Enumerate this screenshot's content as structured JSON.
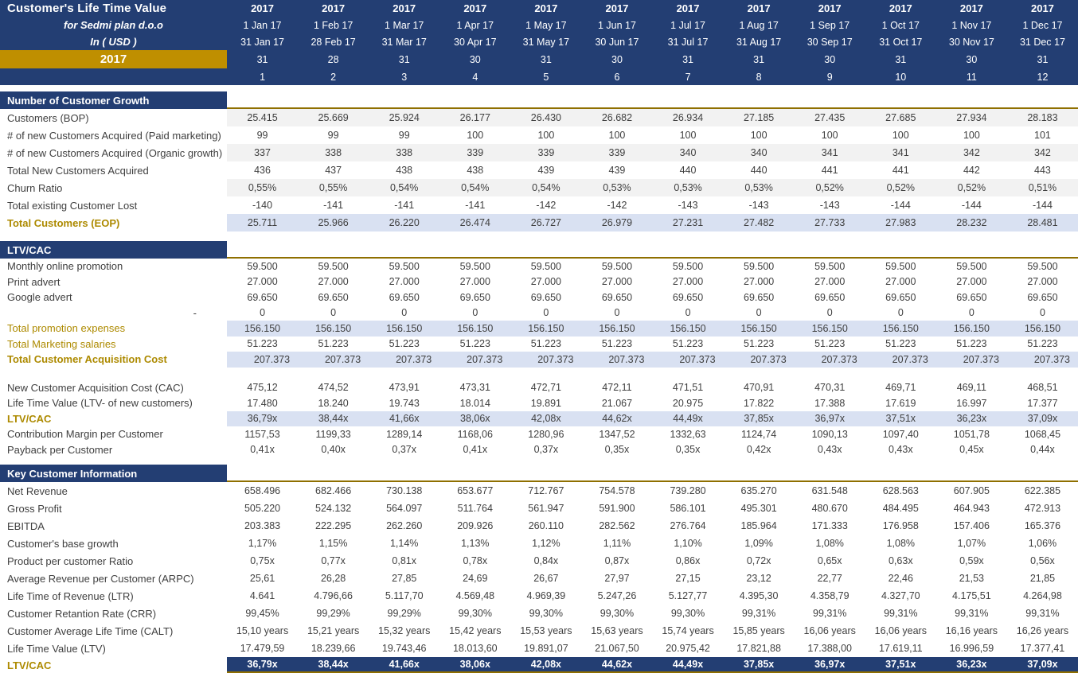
{
  "title": "Customer's Life Time Value",
  "subtitle": "for Sedmi plan d.o.o",
  "currency_line": "In ( USD )",
  "year_band_label": "2017",
  "colors": {
    "navy": "#233E73",
    "gold_band": "#BF8F00",
    "gold_text": "#AD8A00",
    "gold_line": "#8F6F00",
    "highlight_blue": "#D9E1F2",
    "stripe_gray": "#F2F2F2"
  },
  "columns": [
    {
      "year": "2017",
      "start": "1 Jan 17",
      "end": "31 Jan 17",
      "days": "31",
      "num": "1"
    },
    {
      "year": "2017",
      "start": "1 Feb 17",
      "end": "28 Feb 17",
      "days": "28",
      "num": "2"
    },
    {
      "year": "2017",
      "start": "1 Mar 17",
      "end": "31 Mar 17",
      "days": "31",
      "num": "3"
    },
    {
      "year": "2017",
      "start": "1 Apr 17",
      "end": "30 Apr 17",
      "days": "30",
      "num": "4"
    },
    {
      "year": "2017",
      "start": "1 May 17",
      "end": "31 May 17",
      "days": "31",
      "num": "5"
    },
    {
      "year": "2017",
      "start": "1 Jun 17",
      "end": "30 Jun 17",
      "days": "30",
      "num": "6"
    },
    {
      "year": "2017",
      "start": "1 Jul 17",
      "end": "31 Jul 17",
      "days": "31",
      "num": "7"
    },
    {
      "year": "2017",
      "start": "1 Aug 17",
      "end": "31 Aug 17",
      "days": "31",
      "num": "8"
    },
    {
      "year": "2017",
      "start": "1 Sep 17",
      "end": "30 Sep 17",
      "days": "30",
      "num": "9"
    },
    {
      "year": "2017",
      "start": "1 Oct 17",
      "end": "31 Oct 17",
      "days": "31",
      "num": "10"
    },
    {
      "year": "2017",
      "start": "1 Nov 17",
      "end": "30 Nov 17",
      "days": "30",
      "num": "11"
    },
    {
      "year": "2017",
      "start": "1 Dec 17",
      "end": "31 Dec 17",
      "days": "31",
      "num": "12"
    }
  ],
  "sections": [
    {
      "title": "Number of Customer Growth",
      "row_class": "r-s1",
      "rows": [
        {
          "label": "Customers (BOP)",
          "bg": "stripe",
          "values": [
            "25.415",
            "25.669",
            "25.924",
            "26.177",
            "26.430",
            "26.682",
            "26.934",
            "27.185",
            "27.435",
            "27.685",
            "27.934",
            "28.183"
          ]
        },
        {
          "label": "# of new Customers Acquired (Paid marketing)",
          "values": [
            "99",
            "99",
            "99",
            "100",
            "100",
            "100",
            "100",
            "100",
            "100",
            "100",
            "100",
            "101"
          ]
        },
        {
          "label": "# of new Customers Acquired (Organic growth)",
          "bg": "stripe",
          "values": [
            "337",
            "338",
            "338",
            "339",
            "339",
            "339",
            "340",
            "340",
            "341",
            "341",
            "342",
            "342"
          ]
        },
        {
          "label": "Total New Customers Acquired",
          "values": [
            "436",
            "437",
            "438",
            "438",
            "439",
            "439",
            "440",
            "440",
            "441",
            "441",
            "442",
            "443"
          ]
        },
        {
          "label": "Churn Ratio",
          "bg": "stripe",
          "values": [
            "0,55%",
            "0,55%",
            "0,54%",
            "0,54%",
            "0,54%",
            "0,53%",
            "0,53%",
            "0,53%",
            "0,52%",
            "0,52%",
            "0,52%",
            "0,51%"
          ]
        },
        {
          "label": "Total existing Customer Lost",
          "values": [
            "-140",
            "-141",
            "-141",
            "-141",
            "-142",
            "-142",
            "-143",
            "-143",
            "-143",
            "-144",
            "-144",
            "-144"
          ]
        },
        {
          "label": "Total Customers (EOP)",
          "bg": "blue",
          "label_class": "goldb",
          "values": [
            "25.711",
            "25.966",
            "26.220",
            "26.474",
            "26.727",
            "26.979",
            "27.231",
            "27.482",
            "27.733",
            "27.983",
            "28.232",
            "28.481"
          ]
        }
      ]
    },
    {
      "title": "LTV/CAC",
      "row_class": "r-s2",
      "rows": [
        {
          "label": "Monthly online promotion",
          "values": [
            "59.500",
            "59.500",
            "59.500",
            "59.500",
            "59.500",
            "59.500",
            "59.500",
            "59.500",
            "59.500",
            "59.500",
            "59.500",
            "59.500"
          ]
        },
        {
          "label": "Print advert",
          "values": [
            "27.000",
            "27.000",
            "27.000",
            "27.000",
            "27.000",
            "27.000",
            "27.000",
            "27.000",
            "27.000",
            "27.000",
            "27.000",
            "27.000"
          ]
        },
        {
          "label": "Google advert",
          "values": [
            "69.650",
            "69.650",
            "69.650",
            "69.650",
            "69.650",
            "69.650",
            "69.650",
            "69.650",
            "69.650",
            "69.650",
            "69.650",
            "69.650"
          ]
        },
        {
          "label": "-",
          "label_class": "right",
          "values": [
            "0",
            "0",
            "0",
            "0",
            "0",
            "0",
            "0",
            "0",
            "0",
            "0",
            "0",
            "0"
          ]
        },
        {
          "label": "Total promotion expenses",
          "bg": "blue",
          "label_class": "gold",
          "values": [
            "156.150",
            "156.150",
            "156.150",
            "156.150",
            "156.150",
            "156.150",
            "156.150",
            "156.150",
            "156.150",
            "156.150",
            "156.150",
            "156.150"
          ]
        },
        {
          "label": "Total Marketing salaries",
          "label_class": "gold",
          "values": [
            "51.223",
            "51.223",
            "51.223",
            "51.223",
            "51.223",
            "51.223",
            "51.223",
            "51.223",
            "51.223",
            "51.223",
            "51.223",
            "51.223"
          ]
        },
        {
          "label": "Total Customer Acquisition Cost",
          "bg": "blue",
          "label_class": "goldb",
          "align": "right",
          "values": [
            "207.373",
            "207.373",
            "207.373",
            "207.373",
            "207.373",
            "207.373",
            "207.373",
            "207.373",
            "207.373",
            "207.373",
            "207.373",
            "207.373"
          ]
        },
        {
          "blank": true
        },
        {
          "label": "New Customer Acquisition Cost (CAC)",
          "values": [
            "475,12",
            "474,52",
            "473,91",
            "473,31",
            "472,71",
            "472,11",
            "471,51",
            "470,91",
            "470,31",
            "469,71",
            "469,11",
            "468,51"
          ]
        },
        {
          "label": "Life Time Value (LTV- of new customers)",
          "values": [
            "17.480",
            "18.240",
            "19.743",
            "18.014",
            "19.891",
            "21.067",
            "20.975",
            "17.822",
            "17.388",
            "17.619",
            "16.997",
            "17.377"
          ]
        },
        {
          "label": "LTV/CAC",
          "bg": "blue",
          "label_class": "goldb",
          "values": [
            "36,79x",
            "38,44x",
            "41,66x",
            "38,06x",
            "42,08x",
            "44,62x",
            "44,49x",
            "37,85x",
            "36,97x",
            "37,51x",
            "36,23x",
            "37,09x"
          ]
        },
        {
          "label": "Contribution Margin per Customer",
          "values": [
            "1157,53",
            "1199,33",
            "1289,14",
            "1168,06",
            "1280,96",
            "1347,52",
            "1332,63",
            "1124,74",
            "1090,13",
            "1097,40",
            "1051,78",
            "1068,45"
          ]
        },
        {
          "label": "Payback per Customer",
          "values": [
            "0,41x",
            "0,40x",
            "0,37x",
            "0,41x",
            "0,37x",
            "0,35x",
            "0,35x",
            "0,42x",
            "0,43x",
            "0,43x",
            "0,45x",
            "0,44x"
          ]
        }
      ]
    },
    {
      "title": "Key Customer Information",
      "row_class": "r-s3",
      "rows": [
        {
          "label": "Net Revenue",
          "values": [
            "658.496",
            "682.466",
            "730.138",
            "653.677",
            "712.767",
            "754.578",
            "739.280",
            "635.270",
            "631.548",
            "628.563",
            "607.905",
            "622.385"
          ]
        },
        {
          "label": "Gross Profit",
          "values": [
            "505.220",
            "524.132",
            "564.097",
            "511.764",
            "561.947",
            "591.900",
            "586.101",
            "495.301",
            "480.670",
            "484.495",
            "464.943",
            "472.913"
          ]
        },
        {
          "label": "EBITDA",
          "values": [
            "203.383",
            "222.295",
            "262.260",
            "209.926",
            "260.110",
            "282.562",
            "276.764",
            "185.964",
            "171.333",
            "176.958",
            "157.406",
            "165.376"
          ]
        },
        {
          "label": "Customer's base growth",
          "values": [
            "1,17%",
            "1,15%",
            "1,14%",
            "1,13%",
            "1,12%",
            "1,11%",
            "1,10%",
            "1,09%",
            "1,08%",
            "1,08%",
            "1,07%",
            "1,06%"
          ]
        },
        {
          "label": "Product per customer Ratio",
          "values": [
            "0,75x",
            "0,77x",
            "0,81x",
            "0,78x",
            "0,84x",
            "0,87x",
            "0,86x",
            "0,72x",
            "0,65x",
            "0,63x",
            "0,59x",
            "0,56x"
          ]
        },
        {
          "label": "Average Revenue per Customer (ARPC)",
          "values": [
            "25,61",
            "26,28",
            "27,85",
            "24,69",
            "26,67",
            "27,97",
            "27,15",
            "23,12",
            "22,77",
            "22,46",
            "21,53",
            "21,85"
          ]
        },
        {
          "label": "Life Time of Revenue (LTR)",
          "values": [
            "4.641",
            "4.796,66",
            "5.117,70",
            "4.569,48",
            "4.969,39",
            "5.247,26",
            "5.127,77",
            "4.395,30",
            "4.358,79",
            "4.327,70",
            "4.175,51",
            "4.264,98"
          ]
        },
        {
          "label": "Customer Retantion Rate (CRR)",
          "values": [
            "99,45%",
            "99,29%",
            "99,29%",
            "99,30%",
            "99,30%",
            "99,30%",
            "99,30%",
            "99,31%",
            "99,31%",
            "99,31%",
            "99,31%",
            "99,31%"
          ]
        },
        {
          "label": "Customer Average Life Time (CALT)",
          "values": [
            "15,10 years",
            "15,21 years",
            "15,32 years",
            "15,42 years",
            "15,53 years",
            "15,63 years",
            "15,74 years",
            "15,85 years",
            "16,06 years",
            "16,06 years",
            "16,16 years",
            "16,26 years"
          ]
        },
        {
          "label": "Life Time Value (LTV)",
          "values": [
            "17.479,59",
            "18.239,66",
            "19.743,46",
            "18.013,60",
            "19.891,07",
            "21.067,50",
            "20.975,42",
            "17.821,88",
            "17.388,00",
            "17.619,11",
            "16.996,59",
            "17.377,41"
          ]
        },
        {
          "label": "LTV/CAC",
          "bg": "navy",
          "label_class": "goldb",
          "row_class": "r-navy",
          "values": [
            "36,79x",
            "38,44x",
            "41,66x",
            "38,06x",
            "42,08x",
            "44,62x",
            "44,49x",
            "37,85x",
            "36,97x",
            "37,51x",
            "36,23x",
            "37,09x"
          ]
        }
      ]
    }
  ]
}
